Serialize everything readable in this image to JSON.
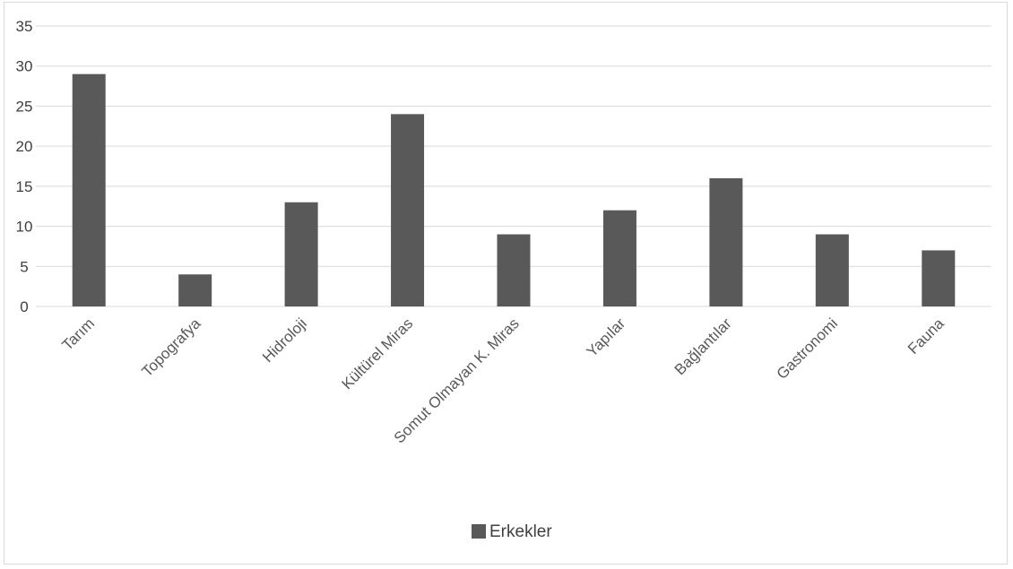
{
  "chart_data": {
    "type": "bar",
    "categories": [
      "Tarım",
      "Topografya",
      "Hidroloji",
      "Kültürel Miras",
      "Somut Olmayan K. Miras",
      "Yapılar",
      "Bağlantılar",
      "Gastronomi",
      "Fauna"
    ],
    "series": [
      {
        "name": "Erkekler",
        "values": [
          29,
          4,
          13,
          24,
          9,
          12,
          16,
          9,
          7
        ],
        "color": "#595959"
      }
    ],
    "ylim": [
      0,
      35
    ],
    "yticks": [
      "0",
      "5",
      "10",
      "15",
      "20",
      "25",
      "30",
      "35"
    ],
    "grid": true,
    "legend_position": "bottom",
    "gridline_color": "#d9d9d9"
  }
}
